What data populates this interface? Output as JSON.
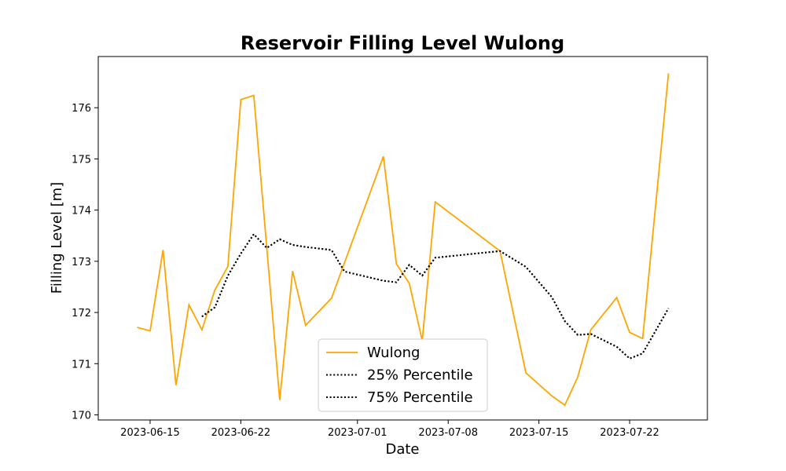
{
  "chart_data": {
    "type": "line",
    "title": "Reservoir Filling Level Wulong",
    "xlabel": "Date",
    "ylabel": "Filling Level [m]",
    "x_range": [
      "2023-06-11",
      "2023-07-28"
    ],
    "ylim": [
      169.9,
      177.0
    ],
    "x_ticks": [
      "2023-06-15",
      "2023-06-22",
      "2023-07-01",
      "2023-07-08",
      "2023-07-15",
      "2023-07-22"
    ],
    "y_ticks": [
      170,
      171,
      172,
      173,
      174,
      175,
      176
    ],
    "grid": false,
    "legend_position": "bottom-center",
    "series": [
      {
        "name": "Wulong",
        "color": "#ffa500",
        "style": "solid",
        "x": [
          "2023-06-14",
          "2023-06-15",
          "2023-06-16",
          "2023-06-17",
          "2023-06-18",
          "2023-06-19",
          "2023-06-20",
          "2023-06-21",
          "2023-06-22",
          "2023-06-23",
          "2023-06-25",
          "2023-06-26",
          "2023-06-27",
          "2023-06-29",
          "2023-07-03",
          "2023-07-04",
          "2023-07-05",
          "2023-07-06",
          "2023-07-07",
          "2023-07-12",
          "2023-07-14",
          "2023-07-16",
          "2023-07-17",
          "2023-07-18",
          "2023-07-19",
          "2023-07-21",
          "2023-07-22",
          "2023-07-23",
          "2023-07-25"
        ],
        "values": [
          171.71,
          171.64,
          173.22,
          170.58,
          172.15,
          171.66,
          172.44,
          172.9,
          176.16,
          176.24,
          170.29,
          172.81,
          171.75,
          172.28,
          175.05,
          172.95,
          172.57,
          171.45,
          174.16,
          173.2,
          170.82,
          170.37,
          170.19,
          170.74,
          171.66,
          172.29,
          171.61,
          171.49,
          176.67
        ]
      },
      {
        "name": "25% Percentile",
        "color": "#000000",
        "style": "dotted",
        "x": [
          "2023-06-19",
          "2023-06-20",
          "2023-06-21",
          "2023-06-22",
          "2023-06-23",
          "2023-06-24",
          "2023-06-25",
          "2023-06-26",
          "2023-06-27",
          "2023-06-29",
          "2023-06-30",
          "2023-07-03",
          "2023-07-04",
          "2023-07-05",
          "2023-07-06",
          "2023-07-07",
          "2023-07-12",
          "2023-07-14",
          "2023-07-16",
          "2023-07-17",
          "2023-07-18",
          "2023-07-19",
          "2023-07-21",
          "2023-07-22",
          "2023-07-23",
          "2023-07-25"
        ],
        "values": [
          171.92,
          172.1,
          172.72,
          173.15,
          173.53,
          173.26,
          173.43,
          173.32,
          173.28,
          173.22,
          172.8,
          172.62,
          172.59,
          172.93,
          172.72,
          173.07,
          173.2,
          172.89,
          172.3,
          171.83,
          171.56,
          171.58,
          171.33,
          171.1,
          171.2,
          172.08
        ]
      },
      {
        "name": "75% Percentile",
        "color": "#000000",
        "style": "dotted",
        "x": [
          "2023-06-19",
          "2023-06-20",
          "2023-06-21",
          "2023-06-22",
          "2023-06-23",
          "2023-06-24",
          "2023-06-25",
          "2023-06-26",
          "2023-06-27",
          "2023-06-29",
          "2023-06-30",
          "2023-07-03",
          "2023-07-04",
          "2023-07-05",
          "2023-07-06",
          "2023-07-07",
          "2023-07-12",
          "2023-07-14",
          "2023-07-16",
          "2023-07-17",
          "2023-07-18",
          "2023-07-19",
          "2023-07-21",
          "2023-07-22",
          "2023-07-23",
          "2023-07-25"
        ],
        "values": [
          171.92,
          172.1,
          172.72,
          173.15,
          173.53,
          173.26,
          173.43,
          173.32,
          173.28,
          173.22,
          172.8,
          172.62,
          172.59,
          172.93,
          172.72,
          173.07,
          173.2,
          172.89,
          172.3,
          171.83,
          171.56,
          171.58,
          171.33,
          171.1,
          171.2,
          172.08
        ]
      }
    ]
  }
}
